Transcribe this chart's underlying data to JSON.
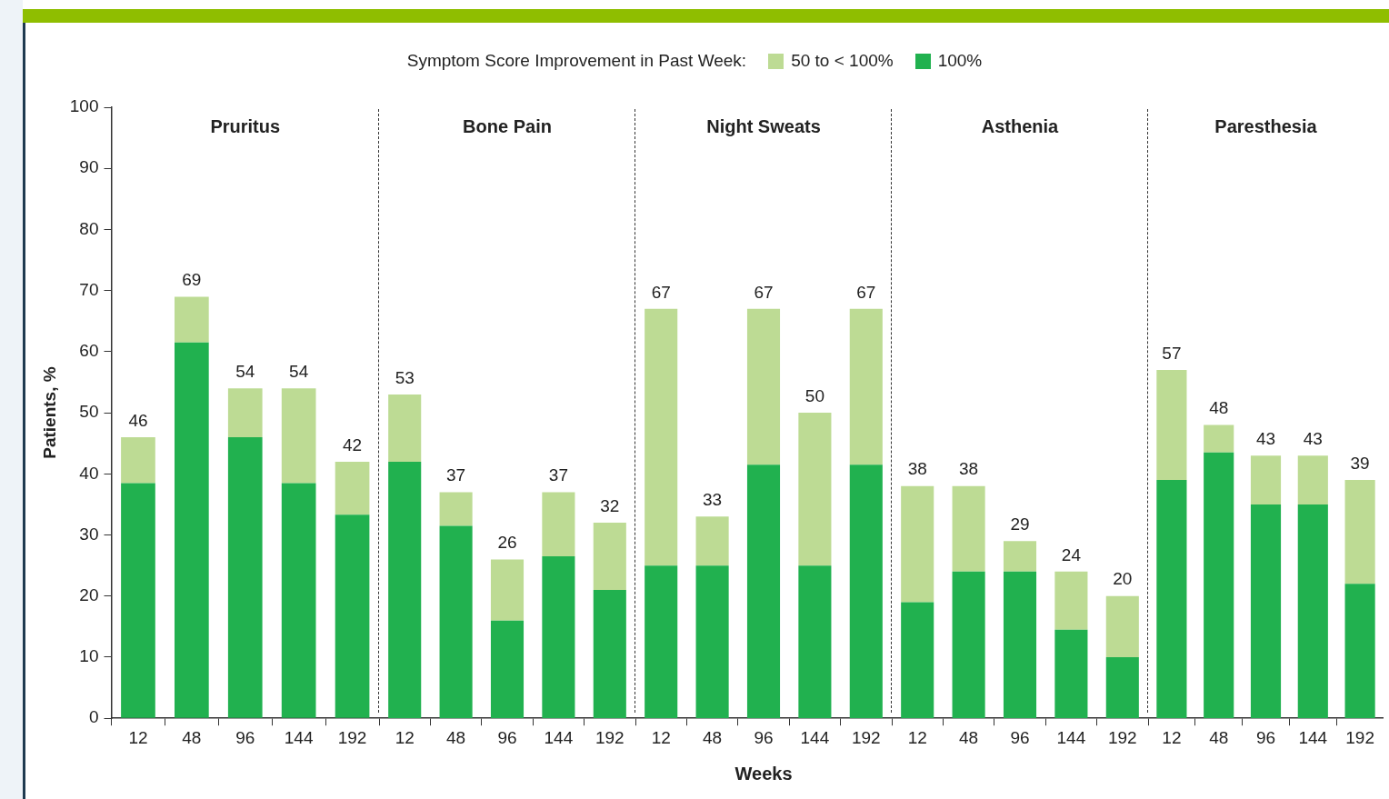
{
  "chart_data": [
    {
      "type": "bar",
      "title": "Pruritus",
      "ylabel": "Patients, %",
      "legend_title": "Symptom Score Improvement in Past Week:",
      "legend": "top",
      "categories": [
        "12",
        "48",
        "96",
        "144",
        "192"
      ],
      "stacked": true,
      "ylim": [
        0,
        100
      ],
      "yticks": [
        0,
        10,
        20,
        30,
        40,
        50,
        60,
        70,
        80,
        90,
        100
      ],
      "grid": false,
      "series": [
        {
          "name": "100%",
          "color": "#21b14f",
          "values": [
            38.5,
            61.5,
            46,
            38.5,
            33.3
          ]
        },
        {
          "name": "50 to < 100%",
          "color": "#bddb94",
          "values": [
            7.5,
            7.5,
            8,
            15.5,
            8.7
          ]
        }
      ],
      "totals": [
        "46",
        "69",
        "54",
        "54",
        "42"
      ]
    },
    {
      "type": "bar",
      "title": "Bone Pain",
      "categories": [
        "12",
        "48",
        "96",
        "144",
        "192"
      ],
      "stacked": true,
      "ylim": [
        0,
        100
      ],
      "yticks": [
        0,
        10,
        20,
        30,
        40,
        50,
        60,
        70,
        80,
        90,
        100
      ],
      "grid": false,
      "tick_labels": "x",
      "series": [
        {
          "color": "#21b14f",
          "values": [
            42,
            31.5,
            16,
            26.5,
            21
          ]
        },
        {
          "color": "#bddb94",
          "values": [
            11,
            5.5,
            10,
            10.5,
            11
          ]
        }
      ],
      "totals": [
        "53",
        "37",
        "26",
        "37",
        "32"
      ]
    },
    {
      "type": "bar",
      "title": "Night Sweats",
      "xlabel": "Weeks",
      "categories": [
        "12",
        "48",
        "96",
        "144",
        "192"
      ],
      "stacked": true,
      "ylim": [
        0,
        100
      ],
      "yticks": [
        0,
        10,
        20,
        30,
        40,
        50,
        60,
        70,
        80,
        90,
        100
      ],
      "grid": false,
      "tick_labels": "x",
      "series": [
        {
          "color": "#21b14f",
          "values": [
            25,
            25,
            41.5,
            25,
            41.5
          ]
        },
        {
          "color": "#bddb94",
          "values": [
            42,
            8,
            25.5,
            25,
            25.5
          ]
        }
      ],
      "totals": [
        "67",
        "33",
        "67",
        "50",
        "67"
      ]
    },
    {
      "type": "bar",
      "title": "Asthenia",
      "categories": [
        "12",
        "48",
        "96",
        "144",
        "192"
      ],
      "stacked": true,
      "ylim": [
        0,
        100
      ],
      "yticks": [
        0,
        10,
        20,
        30,
        40,
        50,
        60,
        70,
        80,
        90,
        100
      ],
      "grid": false,
      "tick_labels": "x",
      "series": [
        {
          "color": "#21b14f",
          "values": [
            19,
            24,
            24,
            14.5,
            10
          ]
        },
        {
          "color": "#bddb94",
          "values": [
            19,
            14,
            5,
            9.5,
            10
          ]
        }
      ],
      "totals": [
        "38",
        "38",
        "29",
        "24",
        "20"
      ]
    },
    {
      "type": "bar",
      "title": "Paresthesia",
      "categories": [
        "12",
        "48",
        "96",
        "144",
        "192"
      ],
      "stacked": true,
      "ylim": [
        0,
        100
      ],
      "yticks": [
        0,
        10,
        20,
        30,
        40,
        50,
        60,
        70,
        80,
        90,
        100
      ],
      "grid": false,
      "tick_labels": "x",
      "series": [
        {
          "color": "#21b14f",
          "values": [
            39,
            43.5,
            35,
            35,
            22
          ]
        },
        {
          "color": "#bddb94",
          "values": [
            18,
            4.5,
            8,
            8,
            17
          ]
        }
      ],
      "totals": [
        "57",
        "48",
        "43",
        "43",
        "39"
      ]
    }
  ]
}
